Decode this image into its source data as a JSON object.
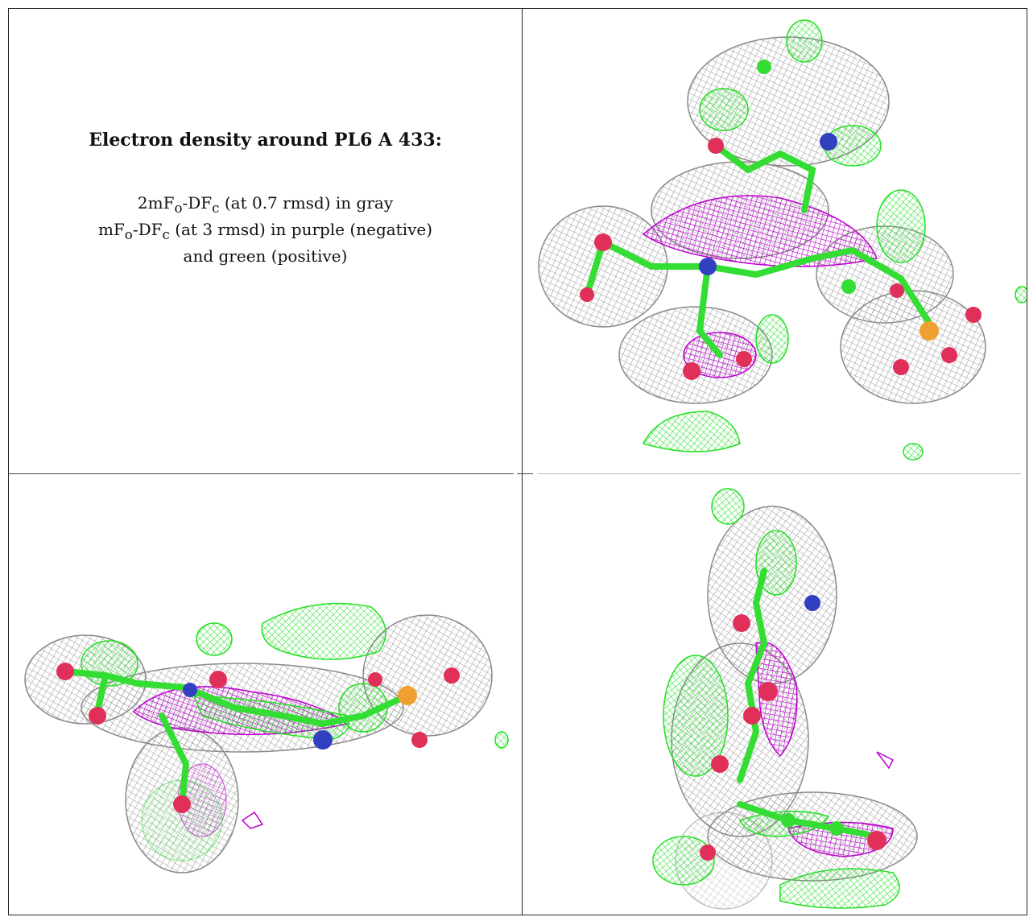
{
  "panel_text": {
    "title": "Electron density around PL6 A 433:",
    "map1_a": "2mF",
    "map1_sub1": "o",
    "map1_b": "-DF",
    "map1_sub2": "c",
    "map1_rest": " (at 0.7 rmsd) in gray",
    "map2_a": "mF",
    "map2_sub1": "o",
    "map2_b": "-DF",
    "map2_sub2": "c",
    "map2_rest": " (at 3 rmsd) in purple (negative)",
    "map2_line2": "and green (positive)"
  },
  "colors": {
    "mesh_gray": "#9a9a9a",
    "mesh_green": "#22e022",
    "mesh_purple": "#bb00cc",
    "atom_carbon": "#33dd33",
    "atom_oxygen": "#e0305a",
    "atom_nitrogen": "#3040c0",
    "atom_phosphorus": "#f0a030"
  }
}
